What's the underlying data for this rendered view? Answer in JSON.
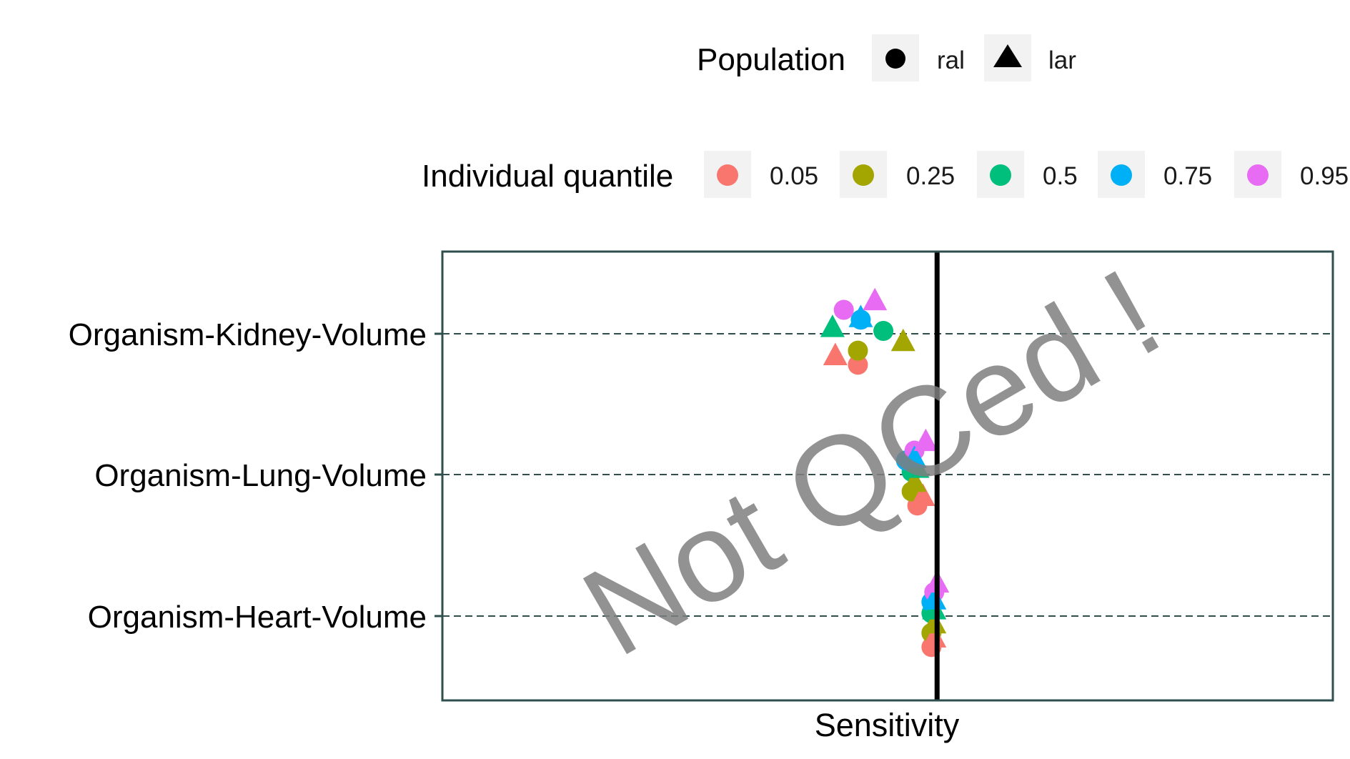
{
  "chart_data": {
    "type": "scatter",
    "xlabel": "Sensitivity",
    "reference_line_x": 0,
    "categories": [
      "Organism-Kidney-Volume",
      "Organism-Lung-Volume",
      "Organism-Heart-Volume"
    ],
    "legend_population": {
      "title": "Population",
      "items": [
        {
          "label": "ral",
          "shape": "circle"
        },
        {
          "label": "lar",
          "shape": "triangle"
        }
      ]
    },
    "legend_quantile": {
      "title": "Individual quantile",
      "items": [
        {
          "label": "0.05",
          "color": "#F8766D"
        },
        {
          "label": "0.25",
          "color": "#A3A500"
        },
        {
          "label": "0.5",
          "color": "#00BF7D"
        },
        {
          "label": "0.75",
          "color": "#00B0F6"
        },
        {
          "label": "0.95",
          "color": "#E76BF3"
        }
      ]
    },
    "xlim": [
      -1.75,
      1.4
    ],
    "series": [
      {
        "population": "ral",
        "quantile": "0.05",
        "points": [
          {
            "parameter": "Organism-Kidney-Volume",
            "x": -0.28,
            "offset": -0.22
          },
          {
            "parameter": "Organism-Lung-Volume",
            "x": -0.07,
            "offset": -0.22
          },
          {
            "parameter": "Organism-Heart-Volume",
            "x": -0.02,
            "offset": -0.22
          }
        ]
      },
      {
        "population": "ral",
        "quantile": "0.25",
        "points": [
          {
            "parameter": "Organism-Kidney-Volume",
            "x": -0.28,
            "offset": -0.12
          },
          {
            "parameter": "Organism-Lung-Volume",
            "x": -0.09,
            "offset": -0.12
          },
          {
            "parameter": "Organism-Heart-Volume",
            "x": -0.02,
            "offset": -0.12
          }
        ]
      },
      {
        "population": "ral",
        "quantile": "0.5",
        "points": [
          {
            "parameter": "Organism-Kidney-Volume",
            "x": -0.19,
            "offset": 0.02
          },
          {
            "parameter": "Organism-Lung-Volume",
            "x": -0.09,
            "offset": 0.02
          },
          {
            "parameter": "Organism-Heart-Volume",
            "x": -0.02,
            "offset": 0.02
          }
        ]
      },
      {
        "population": "ral",
        "quantile": "0.75",
        "points": [
          {
            "parameter": "Organism-Kidney-Volume",
            "x": -0.27,
            "offset": 0.1
          },
          {
            "parameter": "Organism-Lung-Volume",
            "x": -0.11,
            "offset": 0.1
          },
          {
            "parameter": "Organism-Heart-Volume",
            "x": -0.02,
            "offset": 0.1
          }
        ]
      },
      {
        "population": "ral",
        "quantile": "0.95",
        "points": [
          {
            "parameter": "Organism-Kidney-Volume",
            "x": -0.33,
            "offset": 0.17
          },
          {
            "parameter": "Organism-Lung-Volume",
            "x": -0.08,
            "offset": 0.17
          },
          {
            "parameter": "Organism-Heart-Volume",
            "x": -0.01,
            "offset": 0.17
          }
        ]
      },
      {
        "population": "lar",
        "quantile": "0.05",
        "points": [
          {
            "parameter": "Organism-Kidney-Volume",
            "x": -0.36,
            "offset": -0.15
          },
          {
            "parameter": "Organism-Lung-Volume",
            "x": -0.05,
            "offset": -0.15
          },
          {
            "parameter": "Organism-Heart-Volume",
            "x": -0.01,
            "offset": -0.15
          }
        ]
      },
      {
        "population": "lar",
        "quantile": "0.25",
        "points": [
          {
            "parameter": "Organism-Kidney-Volume",
            "x": -0.12,
            "offset": -0.05
          },
          {
            "parameter": "Organism-Lung-Volume",
            "x": -0.08,
            "offset": -0.05
          },
          {
            "parameter": "Organism-Heart-Volume",
            "x": -0.01,
            "offset": -0.05
          }
        ]
      },
      {
        "population": "lar",
        "quantile": "0.5",
        "points": [
          {
            "parameter": "Organism-Kidney-Volume",
            "x": -0.37,
            "offset": 0.05
          },
          {
            "parameter": "Organism-Lung-Volume",
            "x": -0.07,
            "offset": 0.05
          },
          {
            "parameter": "Organism-Heart-Volume",
            "x": -0.01,
            "offset": 0.05
          }
        ]
      },
      {
        "population": "lar",
        "quantile": "0.75",
        "points": [
          {
            "parameter": "Organism-Kidney-Volume",
            "x": -0.27,
            "offset": 0.12
          },
          {
            "parameter": "Organism-Lung-Volume",
            "x": -0.08,
            "offset": 0.12
          },
          {
            "parameter": "Organism-Heart-Volume",
            "x": -0.01,
            "offset": 0.12
          }
        ]
      },
      {
        "population": "lar",
        "quantile": "0.95",
        "points": [
          {
            "parameter": "Organism-Kidney-Volume",
            "x": -0.22,
            "offset": 0.24
          },
          {
            "parameter": "Organism-Lung-Volume",
            "x": -0.04,
            "offset": 0.24
          },
          {
            "parameter": "Organism-Heart-Volume",
            "x": 0.0,
            "offset": 0.24
          }
        ]
      }
    ],
    "colors": {
      "panel_border": "#2F4F4F",
      "grid": "#2F4F4F",
      "reference_line": "#000000",
      "legend_key_bg": "#F2F2F2"
    }
  },
  "watermark": "Not QCed !"
}
